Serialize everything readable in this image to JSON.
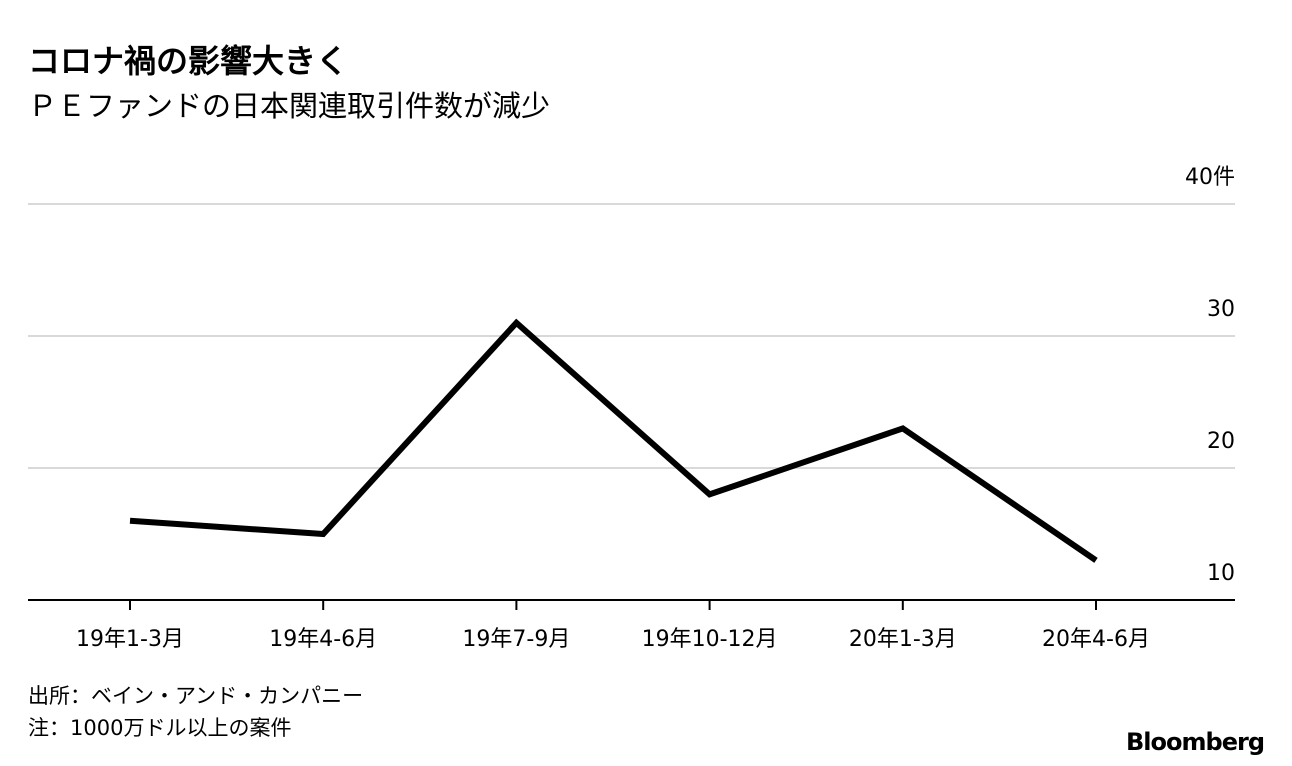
{
  "chart_data": {
    "type": "line",
    "title": "コロナ禍の影響大きく",
    "subtitle": "ＰＥファンドの日本関連取引件数が減少",
    "categories": [
      "19年1-3月",
      "19年4-6月",
      "19年7-9月",
      "19年10-12月",
      "20年1-3月",
      "20年4-6月"
    ],
    "series": [
      {
        "name": "件数",
        "color": "#000000",
        "values": [
          16,
          15,
          31,
          18,
          23,
          13
        ]
      }
    ],
    "ylim": [
      10,
      40
    ],
    "yticks": [
      10,
      20,
      30,
      {
        "value": 40,
        "label": "40件"
      }
    ],
    "grid": true,
    "legend": false,
    "source": "出所：ベイン・アンド・カンパニー",
    "note": "注：1000万ドル以上の案件",
    "brand": "Bloomberg"
  }
}
